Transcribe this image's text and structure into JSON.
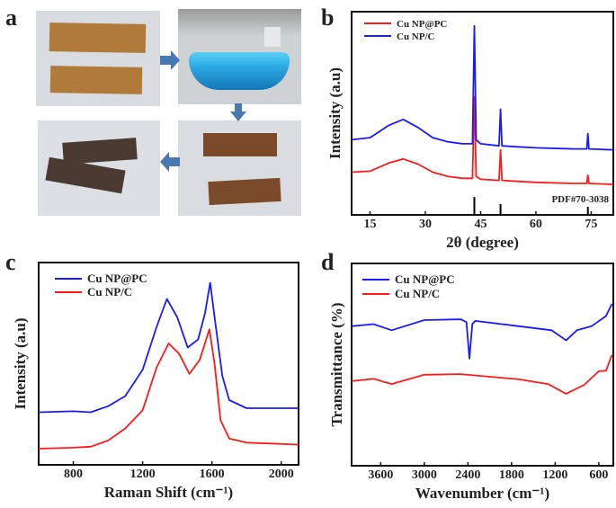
{
  "panel_a": {
    "label": "a",
    "arrow_color": "#4a78b0",
    "photos": [
      {
        "name": "raw-paper-strips",
        "background": "#d8dce0",
        "strip_color": "#b07a3a"
      },
      {
        "name": "blue-copper-solution",
        "background": "#cfd2d4",
        "liquid_color": "#2aa7e0"
      },
      {
        "name": "soaked-strips",
        "background": "#d9dde2",
        "strip_color": "#7a4a2a"
      },
      {
        "name": "carbonized-strips",
        "background": "#dcdfe3",
        "strip_color": "#4a3a32"
      }
    ]
  },
  "chart_data": [
    {
      "panel": "b",
      "type": "line",
      "xlabel": "2θ (degree)",
      "ylabel": "Intensity (a.u)",
      "xlim": [
        10,
        81
      ],
      "ylim": [
        0,
        100
      ],
      "xticks": [
        15,
        30,
        45,
        60,
        75
      ],
      "grid": false,
      "legend": "top-left",
      "annotation": "PDF#70-3038",
      "reference_lines": [
        {
          "x": 43.3,
          "height": 8.8
        },
        {
          "x": 50.4,
          "height": 5.3
        },
        {
          "x": 74.1,
          "height": 4
        }
      ],
      "series": [
        {
          "name": "Cu NP@PC",
          "color": "#ff1a1a",
          "points": [
            [
              10,
              21
            ],
            [
              15,
              21.5
            ],
            [
              20,
              25.5
            ],
            [
              24,
              27.5
            ],
            [
              28,
              25
            ],
            [
              32,
              21
            ],
            [
              36,
              19
            ],
            [
              40,
              18
            ],
            [
              42.8,
              18
            ],
            [
              43.3,
              58
            ],
            [
              43.8,
              19
            ],
            [
              45,
              17.5
            ],
            [
              50,
              17
            ],
            [
              50.4,
              32
            ],
            [
              50.8,
              17
            ],
            [
              55,
              16.5
            ],
            [
              60,
              16
            ],
            [
              70,
              15.5
            ],
            [
              73.8,
              15.5
            ],
            [
              74.1,
              19.5
            ],
            [
              74.4,
              15.5
            ],
            [
              81,
              15
            ]
          ]
        },
        {
          "name": "Cu NP/C",
          "color": "#1a1aff",
          "points": [
            [
              10,
              37
            ],
            [
              15,
              38
            ],
            [
              20,
              44
            ],
            [
              24,
              47
            ],
            [
              28,
              43
            ],
            [
              32,
              38
            ],
            [
              36,
              36
            ],
            [
              40,
              35
            ],
            [
              42.8,
              35
            ],
            [
              43.3,
              93
            ],
            [
              43.8,
              37
            ],
            [
              45,
              35
            ],
            [
              50,
              34
            ],
            [
              50.4,
              52
            ],
            [
              50.8,
              34
            ],
            [
              55,
              33.5
            ],
            [
              60,
              33
            ],
            [
              70,
              32.5
            ],
            [
              73.8,
              32.5
            ],
            [
              74.1,
              40
            ],
            [
              74.4,
              32.5
            ],
            [
              81,
              32
            ]
          ]
        }
      ]
    },
    {
      "panel": "c",
      "type": "line",
      "xlabel": "Raman Shift (cm⁻¹)",
      "ylabel": "Intensity (a.u)",
      "xlim": [
        600,
        2100
      ],
      "ylim": [
        0,
        100
      ],
      "xticks": [
        800,
        1200,
        1600,
        2000
      ],
      "grid": false,
      "legend": "top-left",
      "series": [
        {
          "name": "Cu NP@PC",
          "color": "#1a1aff",
          "points": [
            [
              600,
              26
            ],
            [
              800,
              26.5
            ],
            [
              900,
              26
            ],
            [
              1000,
              29
            ],
            [
              1100,
              34
            ],
            [
              1200,
              47
            ],
            [
              1280,
              68
            ],
            [
              1340,
              82
            ],
            [
              1400,
              73
            ],
            [
              1460,
              58
            ],
            [
              1520,
              62
            ],
            [
              1560,
              75
            ],
            [
              1590,
              90
            ],
            [
              1620,
              70
            ],
            [
              1660,
              44
            ],
            [
              1700,
              32
            ],
            [
              1800,
              28
            ],
            [
              2100,
              28
            ]
          ]
        },
        {
          "name": "Cu NP/C",
          "color": "#ff1a1a",
          "points": [
            [
              600,
              8
            ],
            [
              800,
              8.5
            ],
            [
              900,
              9
            ],
            [
              1000,
              12
            ],
            [
              1100,
              18
            ],
            [
              1200,
              27
            ],
            [
              1280,
              48
            ],
            [
              1350,
              60
            ],
            [
              1410,
              55
            ],
            [
              1470,
              45
            ],
            [
              1530,
              52
            ],
            [
              1585,
              67
            ],
            [
              1615,
              50
            ],
            [
              1650,
              22
            ],
            [
              1700,
              13
            ],
            [
              1800,
              11
            ],
            [
              2100,
              10
            ]
          ]
        }
      ]
    },
    {
      "panel": "d",
      "type": "line",
      "xlabel": "Wavenumber (cm⁻¹)",
      "ylabel": "Transmittance (%)",
      "xlim": [
        4000,
        400
      ],
      "ylim": [
        0,
        100
      ],
      "xticks": [
        3600,
        3000,
        2400,
        1800,
        1200,
        600
      ],
      "grid": false,
      "legend": "top-left",
      "series": [
        {
          "name": "Cu NP@PC",
          "color": "#1a1aff",
          "points": [
            [
              4000,
              69
            ],
            [
              3700,
              70
            ],
            [
              3450,
              67
            ],
            [
              3000,
              72
            ],
            [
              2500,
              72.4
            ],
            [
              2420,
              71
            ],
            [
              2380,
              53
            ],
            [
              2340,
              70
            ],
            [
              2300,
              71.6
            ],
            [
              1700,
              69
            ],
            [
              1250,
              67
            ],
            [
              1050,
              62
            ],
            [
              900,
              67
            ],
            [
              700,
              69
            ],
            [
              500,
              74
            ],
            [
              420,
              80
            ]
          ]
        },
        {
          "name": "Cu NP/C",
          "color": "#ff1a1a",
          "points": [
            [
              4000,
              41.8
            ],
            [
              3700,
              43
            ],
            [
              3450,
              40.4
            ],
            [
              3000,
              45
            ],
            [
              2500,
              45.3
            ],
            [
              1700,
              42.7
            ],
            [
              1300,
              40.4
            ],
            [
              1050,
              35.6
            ],
            [
              800,
              40
            ],
            [
              600,
              46.7
            ],
            [
              500,
              47
            ],
            [
              420,
              54.7
            ]
          ]
        }
      ]
    }
  ]
}
